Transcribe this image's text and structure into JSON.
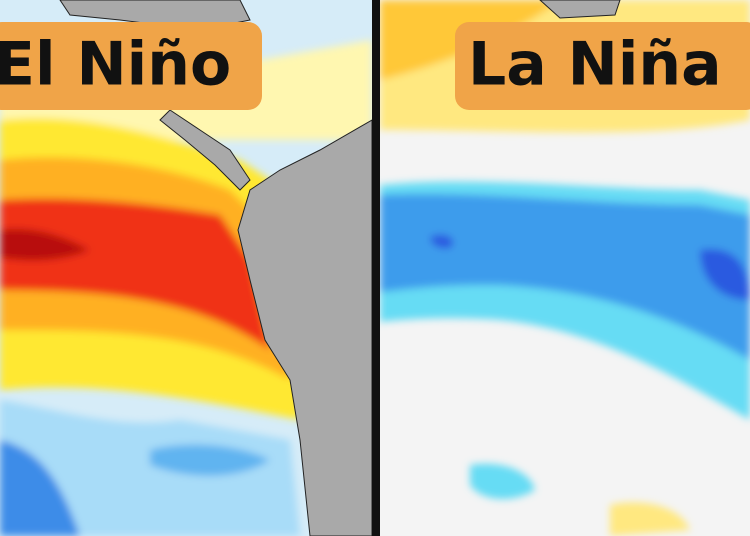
{
  "panels": [
    {
      "label": "El Niño"
    },
    {
      "label": "La Niña"
    }
  ]
}
